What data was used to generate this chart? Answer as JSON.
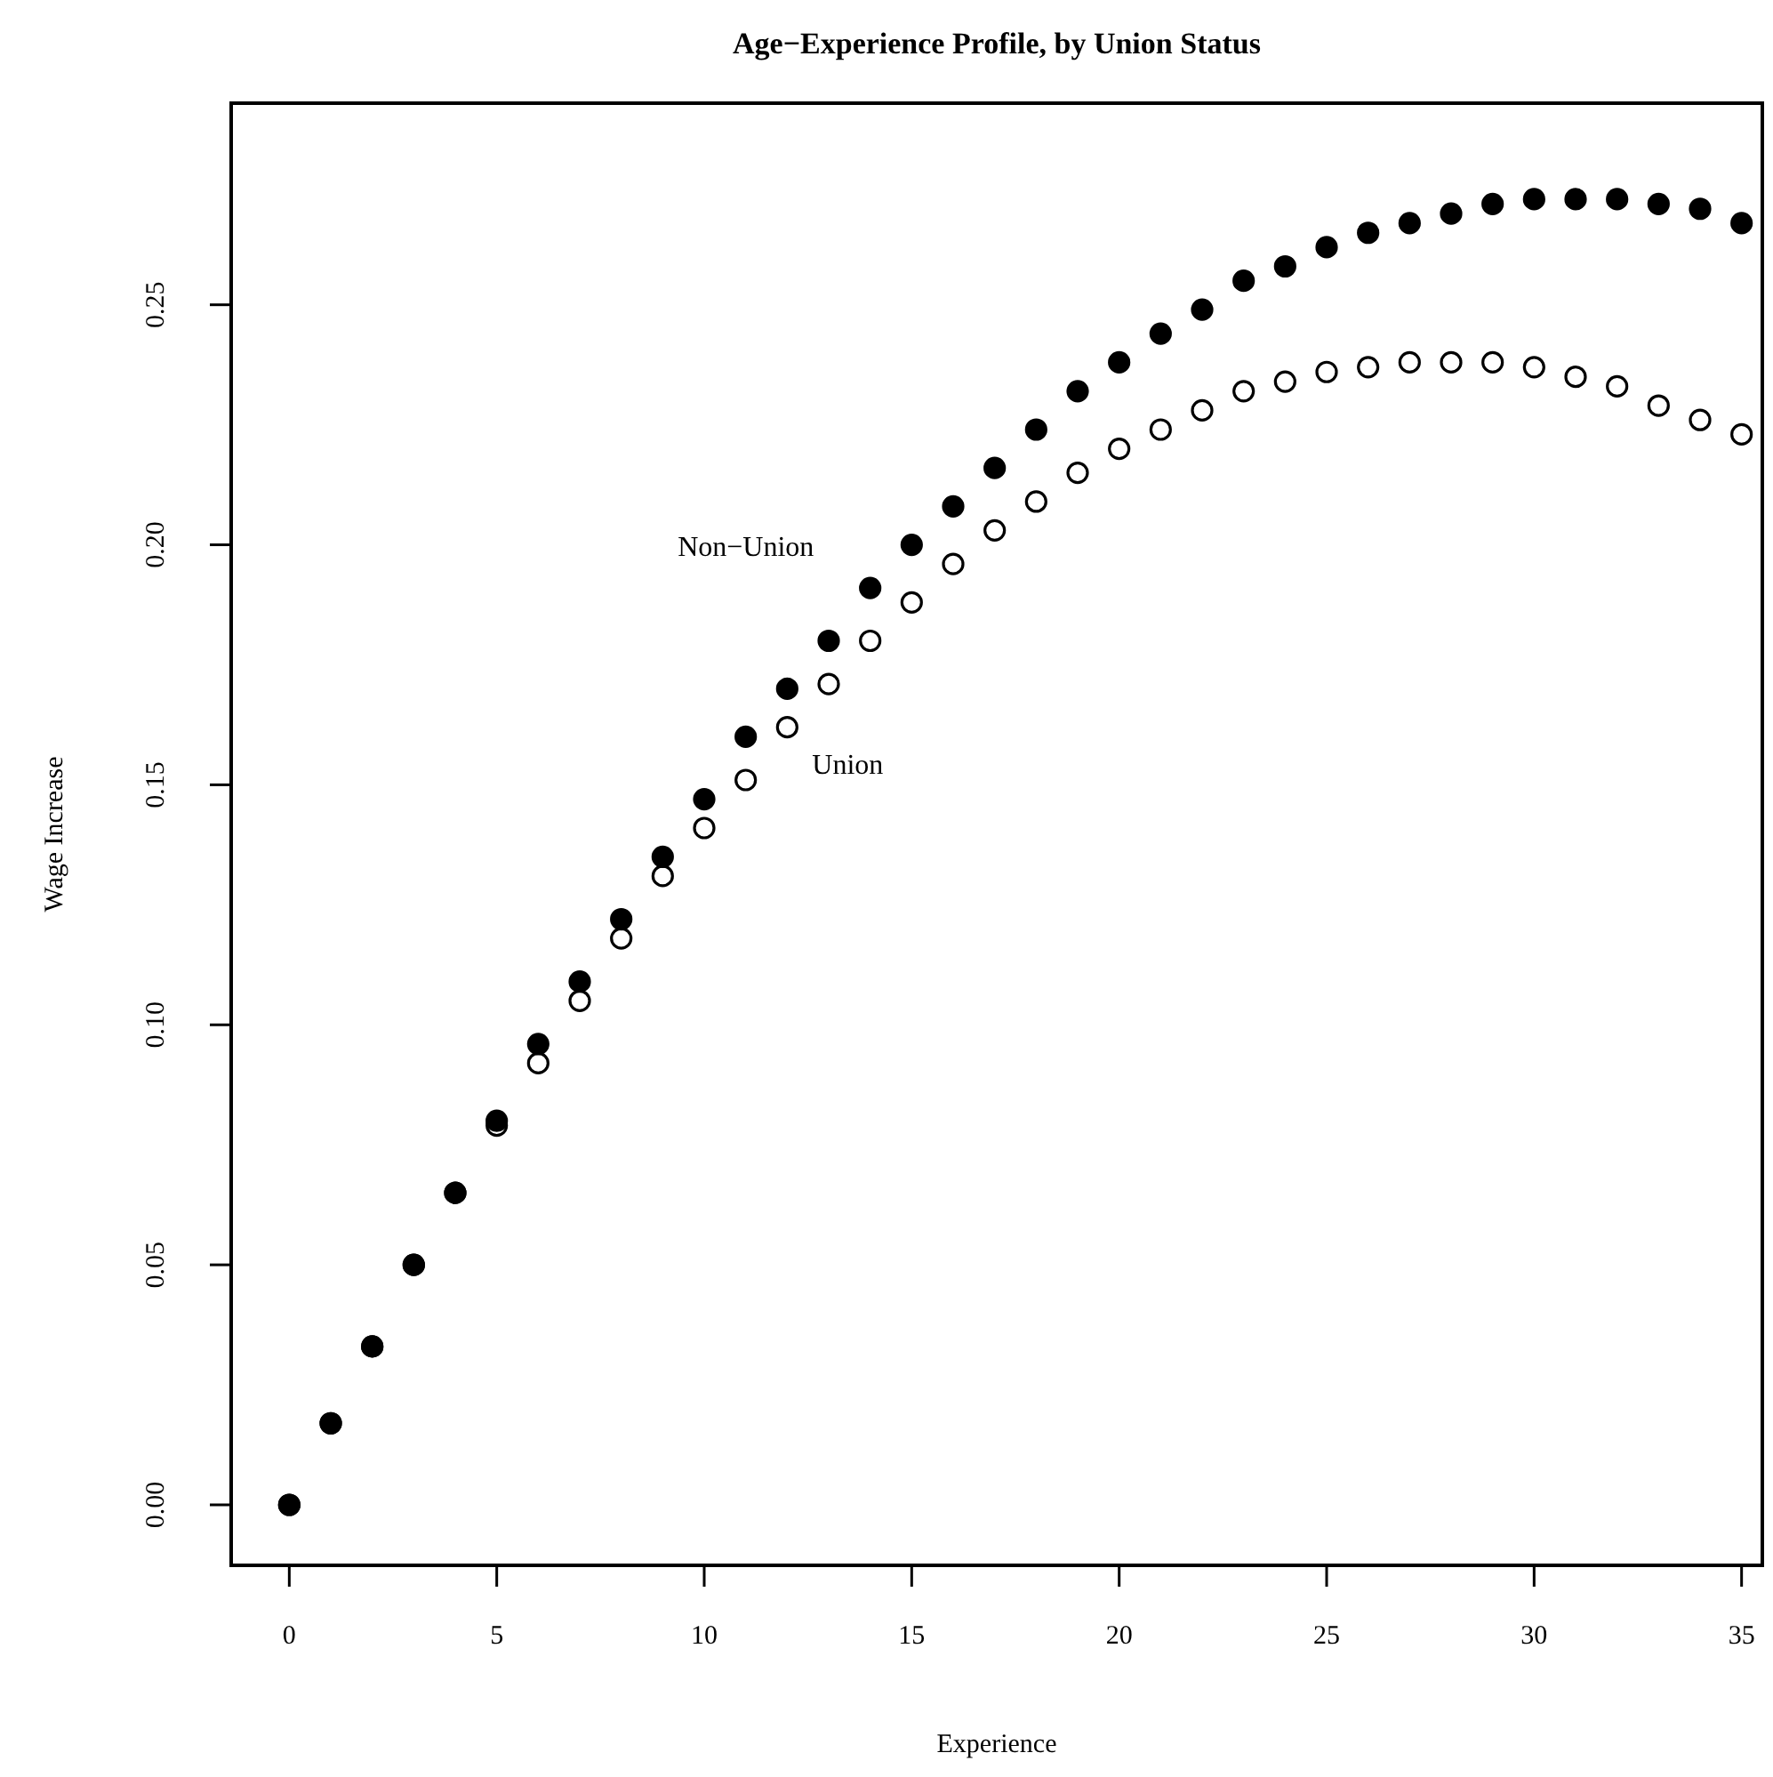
{
  "chart_data": {
    "type": "scatter",
    "title": "Age−Experience Profile, by Union Status",
    "xlabel": "Experience",
    "ylabel": "Wage Increase",
    "x": [
      0,
      1,
      2,
      3,
      4,
      5,
      6,
      7,
      8,
      9,
      10,
      11,
      12,
      13,
      14,
      15,
      16,
      17,
      18,
      19,
      20,
      21,
      22,
      23,
      24,
      25,
      26,
      27,
      28,
      29,
      30,
      31,
      32,
      33,
      34,
      35
    ],
    "series": [
      {
        "name": "Non−Union",
        "color": "#000000",
        "values": [
          0,
          0.017,
          0.033,
          0.05,
          0.065,
          0.08,
          0.096,
          0.109,
          0.122,
          0.135,
          0.147,
          0.16,
          0.17,
          0.18,
          0.191,
          0.2,
          0.208,
          0.216,
          0.224,
          0.232,
          0.238,
          0.244,
          0.249,
          0.255,
          0.258,
          0.262,
          0.265,
          0.267,
          0.269,
          0.271,
          0.272,
          0.272,
          0.272,
          0.271,
          0.27,
          0.267
        ]
      },
      {
        "name": "Union",
        "color": "#000000",
        "values": [
          0,
          0.017,
          0.033,
          0.05,
          0.065,
          0.079,
          0.092,
          0.105,
          0.118,
          0.131,
          0.141,
          0.151,
          0.162,
          0.171,
          0.18,
          0.188,
          0.196,
          0.203,
          0.209,
          0.215,
          0.22,
          0.224,
          0.228,
          0.232,
          0.234,
          0.236,
          0.237,
          0.238,
          0.238,
          0.238,
          0.237,
          0.235,
          0.233,
          0.229,
          0.226,
          0.223
        ]
      }
    ],
    "xlim": [
      -1.4,
      35.5
    ],
    "ylim": [
      -0.0126,
      0.292
    ],
    "xticks": [
      0,
      5,
      10,
      15,
      20,
      25,
      30,
      35
    ],
    "yticks": [
      {
        "value": 0,
        "label": "0.00"
      },
      0.05,
      {
        "value": 0.1,
        "label": "0.10"
      },
      0.15,
      {
        "value": 0.2,
        "label": "0.20"
      },
      0.25
    ],
    "marker": "circle",
    "grid": false
  }
}
